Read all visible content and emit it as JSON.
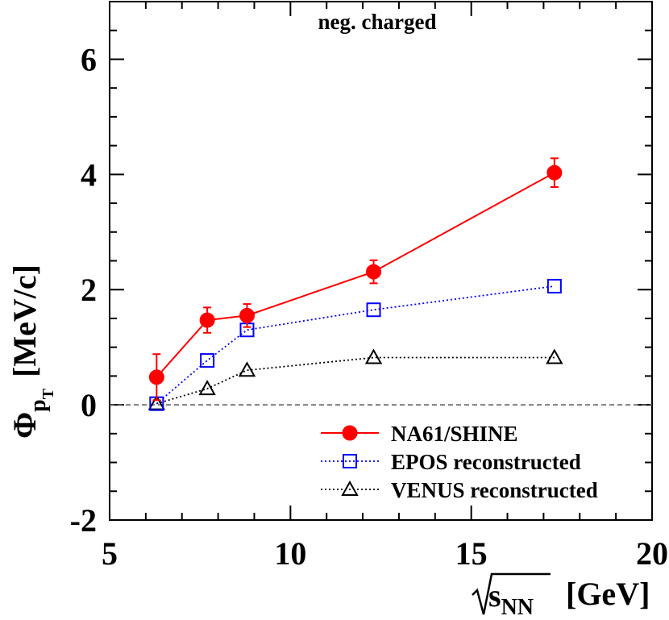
{
  "chart_data": {
    "type": "scatter",
    "annotation": "neg. charged",
    "xlabel": {
      "main": "s",
      "sub": "NN",
      "unit": "[GeV]"
    },
    "ylabel": {
      "symbol": "Φ",
      "sub": "p",
      "subsub": "T",
      "unit": "[MeV/c]"
    },
    "xlim": [
      5,
      20
    ],
    "ylim": [
      -2,
      7
    ],
    "xticks": [
      "5",
      "10",
      "15",
      "20"
    ],
    "yticks": [
      "-2",
      "0",
      "2",
      "4",
      "6"
    ],
    "reference_line_y": 0,
    "legend_position": "bottom-right",
    "series": [
      {
        "name": "NA61/SHINE",
        "color": "#ff0000",
        "marker": "filled-circle",
        "line": "solid",
        "points": [
          {
            "x": 6.3,
            "y": 0.48,
            "err": 0.4
          },
          {
            "x": 7.7,
            "y": 1.47,
            "err": 0.22
          },
          {
            "x": 8.8,
            "y": 1.55,
            "err": 0.2
          },
          {
            "x": 12.3,
            "y": 2.31,
            "err": 0.2
          },
          {
            "x": 17.3,
            "y": 4.03,
            "err": 0.25
          }
        ]
      },
      {
        "name": "EPOS reconstructed",
        "color": "#0000ff",
        "marker": "open-square",
        "line": "dotted",
        "points": [
          {
            "x": 6.3,
            "y": 0.02
          },
          {
            "x": 7.7,
            "y": 0.77
          },
          {
            "x": 8.8,
            "y": 1.3
          },
          {
            "x": 12.3,
            "y": 1.65
          },
          {
            "x": 17.3,
            "y": 2.06
          }
        ]
      },
      {
        "name": "VENUS reconstructed",
        "color": "#000000",
        "marker": "open-triangle",
        "line": "dotted",
        "points": [
          {
            "x": 6.3,
            "y": 0.02
          },
          {
            "x": 7.7,
            "y": 0.28
          },
          {
            "x": 8.8,
            "y": 0.6
          },
          {
            "x": 12.3,
            "y": 0.82
          },
          {
            "x": 17.3,
            "y": 0.82
          }
        ]
      }
    ]
  }
}
